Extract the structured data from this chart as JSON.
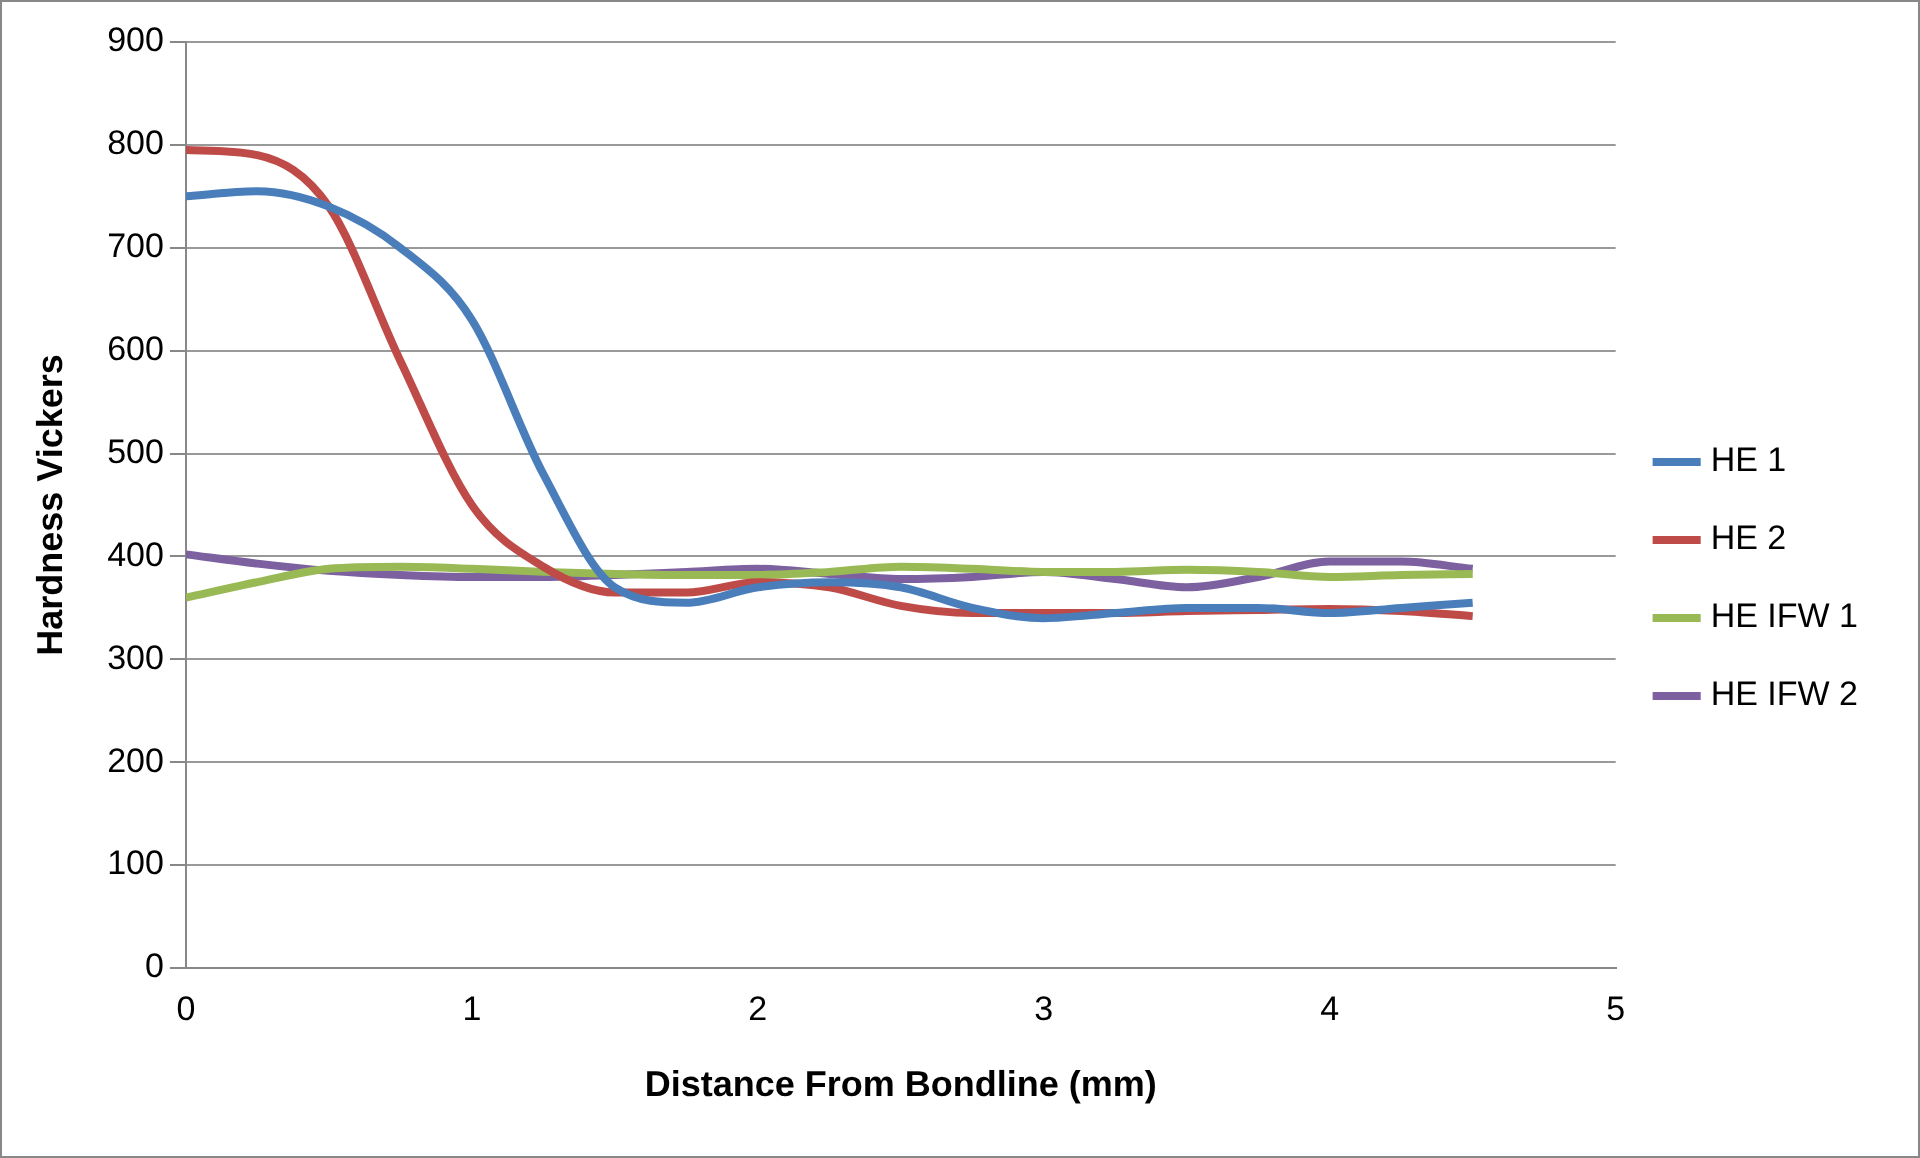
{
  "chart_data": {
    "type": "line",
    "xlabel": "Distance From Bondline (mm)",
    "ylabel": "Hardness Vickers",
    "x": [
      0,
      0.25,
      0.5,
      0.75,
      1,
      1.25,
      1.5,
      1.75,
      2,
      2.25,
      2.5,
      2.75,
      3,
      3.25,
      3.5,
      3.75,
      4,
      4.25,
      4.5
    ],
    "series": [
      {
        "name": "HE 1",
        "color": "#4a7ebb",
        "values": [
          750,
          755,
          740,
          700,
          630,
          480,
          370,
          355,
          370,
          375,
          370,
          350,
          340,
          345,
          350,
          350,
          345,
          350,
          355
        ]
      },
      {
        "name": "HE 2",
        "color": "#be4b48",
        "values": [
          795,
          790,
          740,
          590,
          450,
          390,
          365,
          365,
          375,
          370,
          352,
          345,
          345,
          345,
          347,
          348,
          349,
          347,
          342
        ]
      },
      {
        "name": "HE IFW 1",
        "color": "#98b954",
        "values": [
          360,
          375,
          388,
          390,
          388,
          385,
          383,
          382,
          382,
          385,
          390,
          388,
          385,
          385,
          387,
          385,
          380,
          382,
          383
        ]
      },
      {
        "name": "HE IFW 2",
        "color": "#7d60a0",
        "values": [
          402,
          393,
          386,
          382,
          380,
          380,
          382,
          385,
          388,
          383,
          378,
          380,
          385,
          378,
          370,
          380,
          395,
          395,
          388
        ]
      }
    ],
    "xlim": [
      0,
      5
    ],
    "xticks": [
      0,
      1,
      2,
      3,
      4,
      5
    ],
    "ylim": [
      0,
      900
    ],
    "yticks": [
      0,
      100,
      200,
      300,
      400,
      500,
      600,
      700,
      800,
      900
    ],
    "grid": "y",
    "legend": "right",
    "marker": "none",
    "line_style": "solid"
  }
}
